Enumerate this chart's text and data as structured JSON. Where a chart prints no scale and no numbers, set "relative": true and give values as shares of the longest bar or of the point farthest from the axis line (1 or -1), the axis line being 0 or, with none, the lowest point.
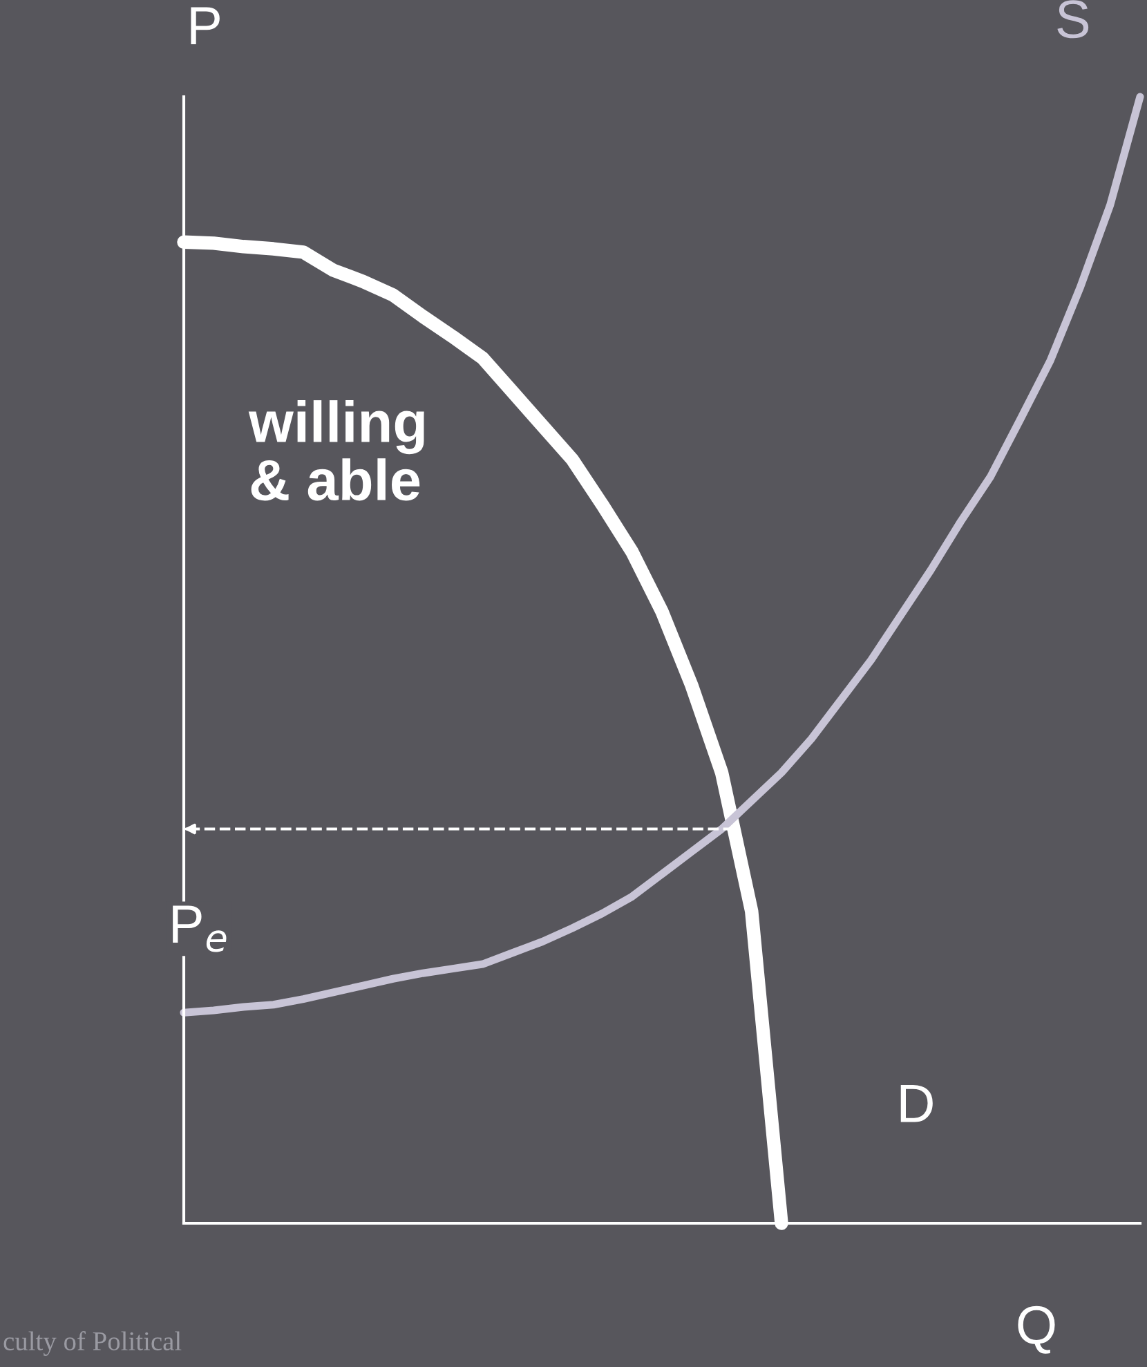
{
  "chart_data": {
    "type": "line",
    "relative": true,
    "ylabel": "P",
    "xlabel": "Q",
    "categories": [
      null,
      null,
      null,
      null,
      null,
      null,
      null,
      null,
      null,
      null,
      null,
      null,
      null,
      null,
      null,
      null,
      null,
      null,
      null,
      null,
      null,
      null,
      null,
      null,
      null,
      null,
      null,
      null,
      null,
      null,
      null,
      null,
      null
    ],
    "series": [
      {
        "name": "D",
        "color": "#ffffff",
        "values": [
          0.871,
          0.87,
          0.867,
          0.865,
          0.862,
          0.846,
          0.836,
          0.824,
          0.805,
          0.787,
          0.768,
          0.738,
          0.708,
          0.678,
          0.638,
          0.596,
          0.543,
          0.477,
          0.4,
          0.277,
          0,
          null,
          null,
          null,
          null,
          null,
          null,
          null,
          null,
          null,
          null,
          null,
          null
        ]
      },
      {
        "name": "S",
        "color": "#c8c4d6",
        "values": [
          0.187,
          0.189,
          0.192,
          0.194,
          0.199,
          0.205,
          0.211,
          0.217,
          0.222,
          0.226,
          0.23,
          0.24,
          0.25,
          0.262,
          0.275,
          0.29,
          0.31,
          0.33,
          0.35,
          0.375,
          0.4,
          0.43,
          0.465,
          0.5,
          0.54,
          0.58,
          0.623,
          0.663,
          0.714,
          0.766,
          0.831,
          0.904,
          1.0
        ]
      }
    ],
    "ref_lines": [
      {
        "axis": "y",
        "value": 0.35,
        "label": "P$_{e}$",
        "color": "#ffffff",
        "line_style": "dashed"
      }
    ],
    "annotations": [
      "willing\n& able",
      "culty of Political"
    ],
    "legend": false,
    "marker": "none",
    "line_style": "solid"
  }
}
